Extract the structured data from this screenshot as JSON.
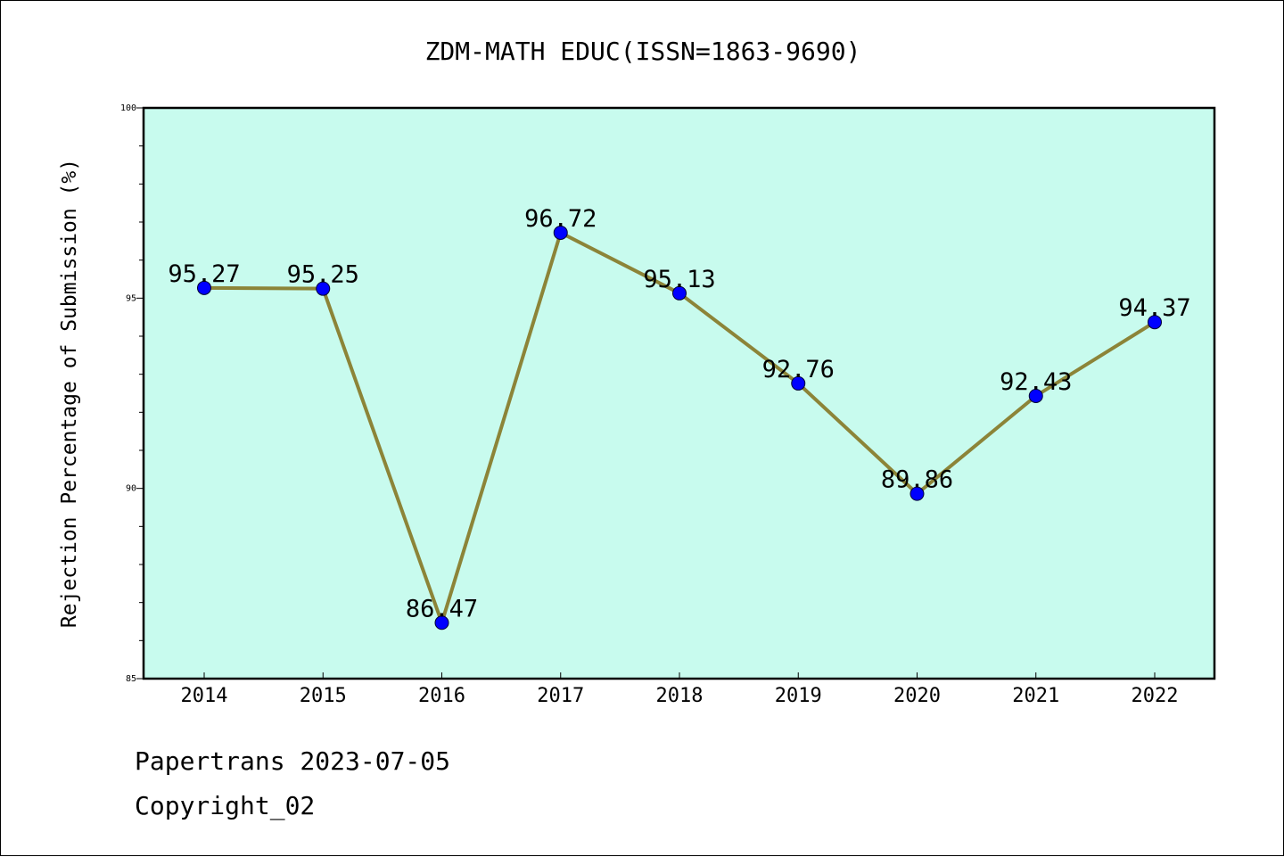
{
  "chart_data": {
    "type": "line",
    "title": "ZDM-MATH EDUC(ISSN=1863-9690)",
    "xlabel": "",
    "ylabel": "Rejection Percentage of Submission (%)",
    "categories": [
      "2014",
      "2015",
      "2016",
      "2017",
      "2018",
      "2019",
      "2020",
      "2021",
      "2022"
    ],
    "values": [
      95.27,
      95.25,
      86.47,
      96.72,
      95.13,
      92.76,
      89.86,
      92.43,
      94.37
    ],
    "data_labels": [
      "95.27",
      "95.25",
      "86.47",
      "96.72",
      "95.13",
      "92.76",
      "89.86",
      "92.43",
      "94.37"
    ],
    "ylim": [
      85,
      100
    ],
    "yticks": [
      "85",
      "90",
      "95",
      "100"
    ],
    "grid": false,
    "colors": {
      "plot_background": "#c8fbee",
      "line": "#8c8438",
      "marker": "#0000ff"
    }
  },
  "footer": {
    "line1": "Papertrans 2023-07-05",
    "line2": "Copyright_02"
  }
}
